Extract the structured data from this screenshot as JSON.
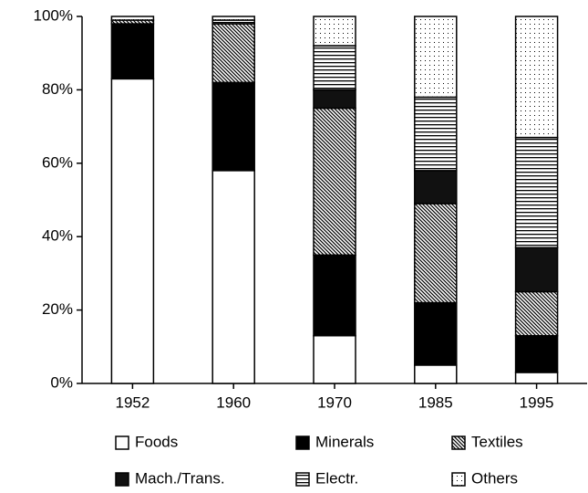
{
  "chart_data": {
    "type": "stacked_bar",
    "categories": [
      "1952",
      "1960",
      "1970",
      "1985",
      "1995"
    ],
    "series": [
      {
        "name": "Foods",
        "color": "#ffffff",
        "pattern": "solid",
        "values": [
          83,
          58,
          13,
          5,
          3
        ]
      },
      {
        "name": "Minerals",
        "color": "#000000",
        "pattern": "solid",
        "values": [
          15,
          24,
          22,
          17,
          10
        ]
      },
      {
        "name": "Textiles",
        "color": "#000000",
        "pattern": "diagonal",
        "values": [
          1,
          16,
          40,
          27,
          12
        ]
      },
      {
        "name": "Mach./Trans.",
        "color": "#111111",
        "pattern": "solid",
        "values": [
          0,
          0,
          5,
          9,
          12
        ]
      },
      {
        "name": "Electr.",
        "color": "#000000",
        "pattern": "horizontal",
        "values": [
          0,
          1,
          12,
          20,
          30
        ]
      },
      {
        "name": "Others",
        "color": "#000000",
        "pattern": "dots",
        "values": [
          1,
          1,
          8,
          22,
          33
        ]
      }
    ],
    "ylim": [
      0,
      100
    ],
    "yticks": [
      {
        "value": 0,
        "label": "0%"
      },
      {
        "value": 20,
        "label": "20%"
      },
      {
        "value": 40,
        "label": "40%"
      },
      {
        "value": 60,
        "label": "60%"
      },
      {
        "value": 80,
        "label": "80%"
      },
      {
        "value": 100,
        "label": "100%"
      }
    ]
  }
}
